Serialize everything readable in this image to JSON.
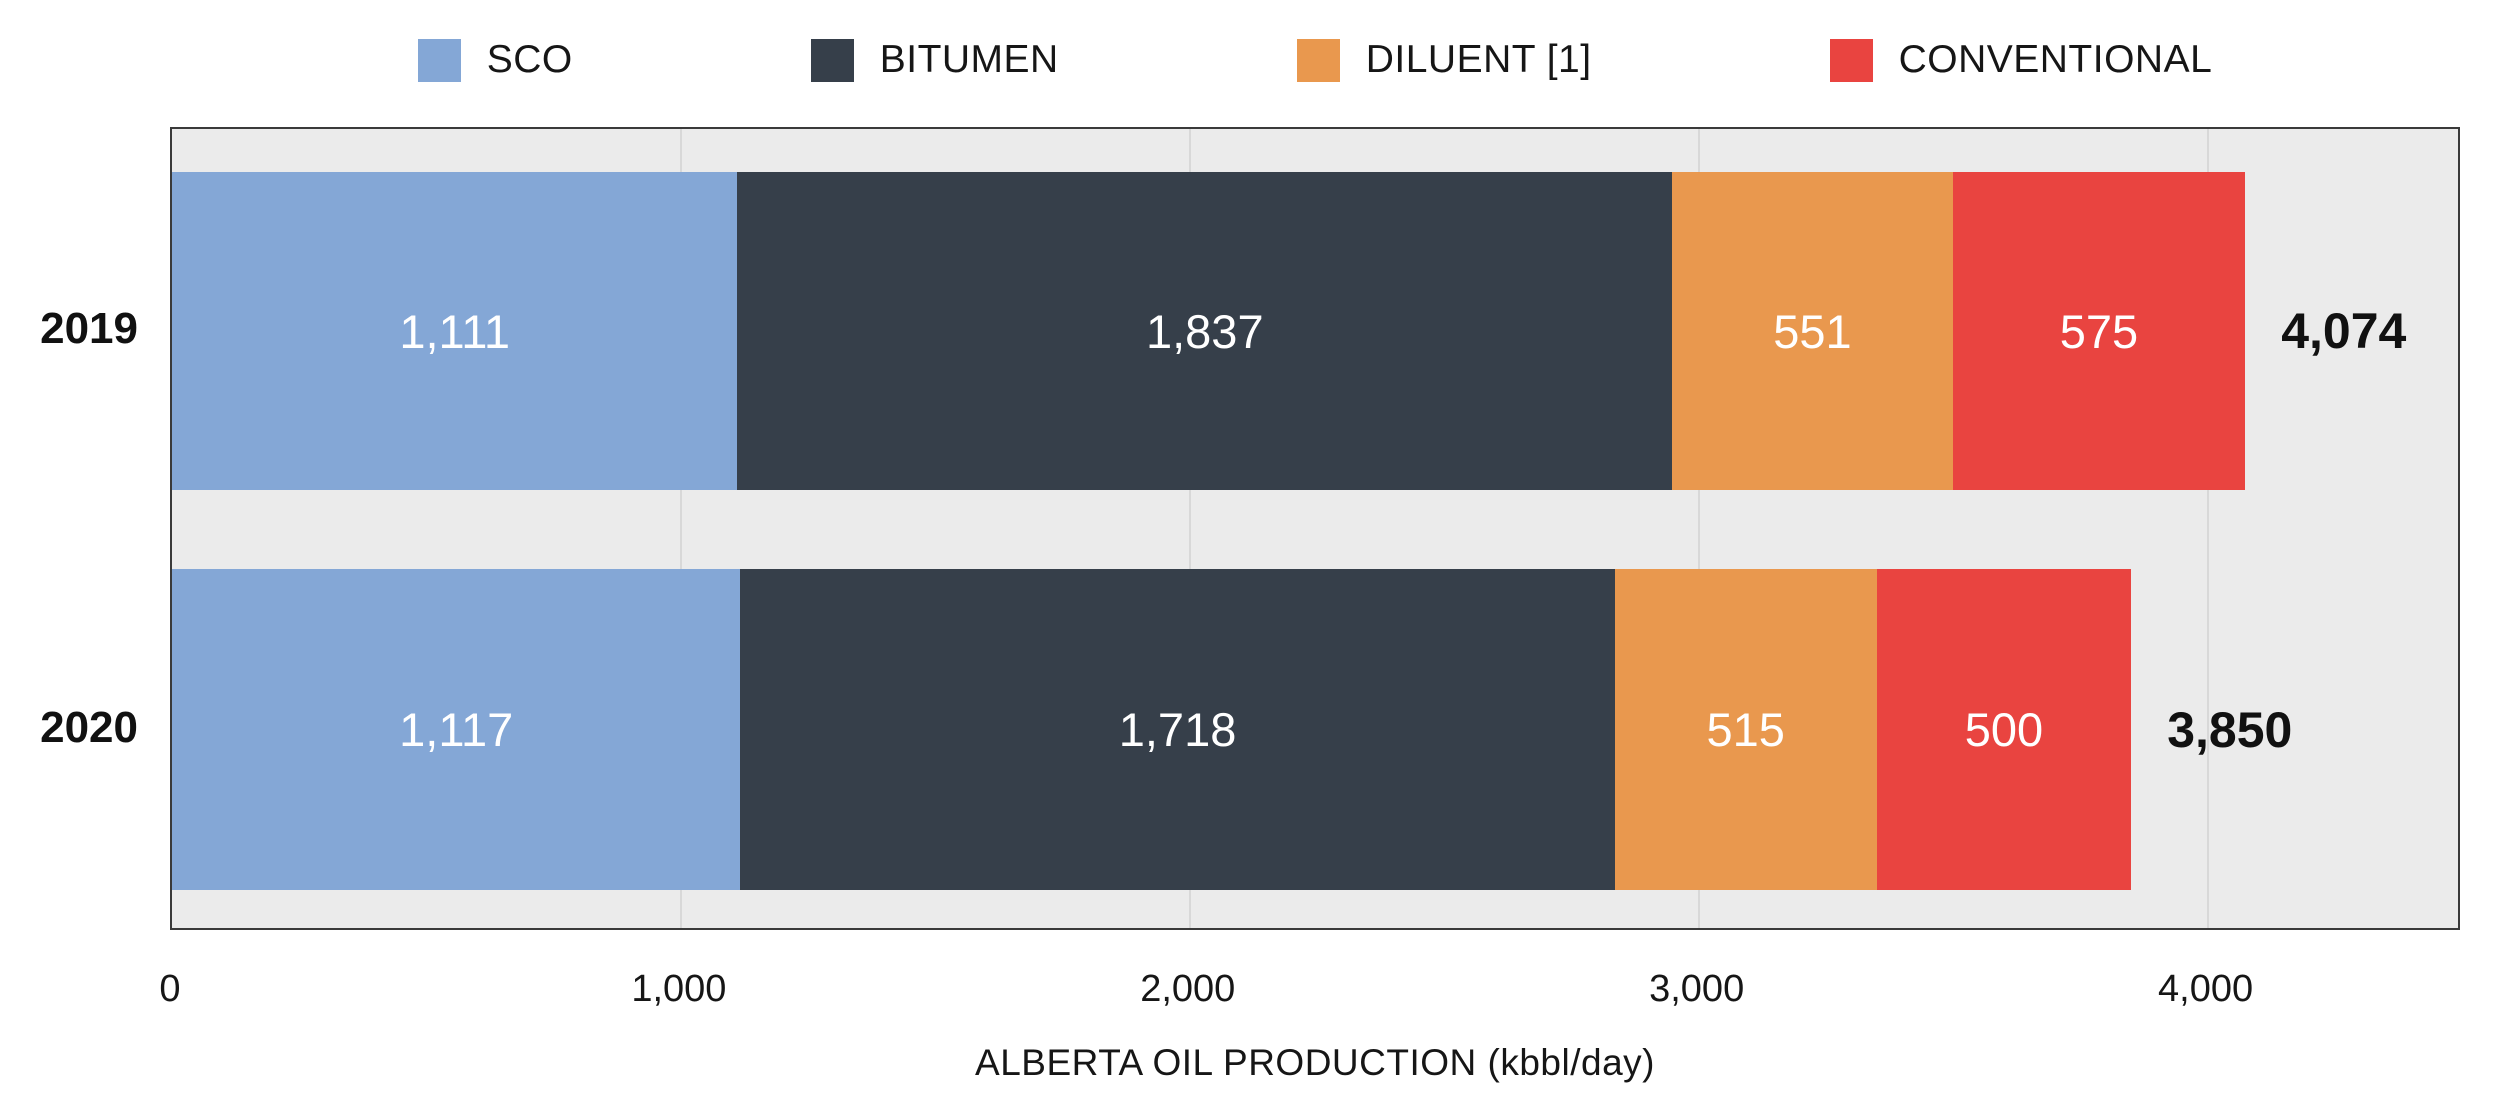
{
  "chart_data": {
    "type": "bar",
    "orientation": "horizontal",
    "stacked": true,
    "title": "",
    "xlabel": "ALBERTA OIL PRODUCTION (kbbl/day)",
    "ylabel": "",
    "categories": [
      "2019",
      "2020"
    ],
    "series": [
      {
        "name": "SCO",
        "color": "#84a7d6",
        "values": [
          1111,
          1117
        ],
        "labels": [
          "1,111",
          "1,117"
        ]
      },
      {
        "name": "BITUMEN",
        "color": "#363f4a",
        "values": [
          1837,
          1718
        ],
        "labels": [
          "1,837",
          "1,718"
        ]
      },
      {
        "name": "DILUENT [1]",
        "color": "#e9984e",
        "values": [
          551,
          515
        ],
        "labels": [
          "551",
          "515"
        ]
      },
      {
        "name": "CONVENTIONAL",
        "color": "#e94440",
        "values": [
          575,
          500
        ],
        "labels": [
          "575",
          "500"
        ]
      }
    ],
    "totals": [
      4074,
      3850
    ],
    "total_labels": [
      "4,074",
      "3,850"
    ],
    "xlim": [
      0,
      4500
    ],
    "xticks": [
      0,
      1000,
      2000,
      3000,
      4000
    ],
    "xtick_labels": [
      "0",
      "1,000",
      "2,000",
      "3,000",
      "4,000"
    ],
    "grid": true,
    "legend_position": "top",
    "colors": {
      "plot_background": "#ebebeb",
      "gridline": "#d8d8d8",
      "plot_border": "#3a3a3a",
      "segment_text": "#ffffff",
      "axis_text": "#161616",
      "total_text": "#111111"
    }
  }
}
